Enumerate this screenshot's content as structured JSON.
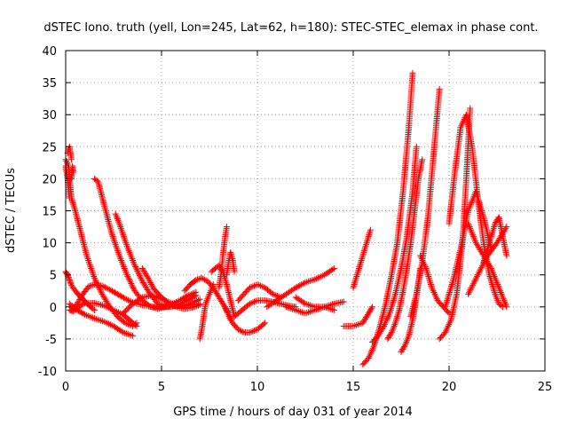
{
  "chart_data": {
    "type": "scatter",
    "title": "dSTEC Iono. truth (yell, Lon=245, Lat=62, h=180): STEC-STEC_elemax in phase cont.",
    "xlabel": "GPS time / hours of day 031 of year 2014",
    "ylabel": "dSTEC  / TECUs",
    "xlim": [
      0,
      25
    ],
    "ylim": [
      -10,
      40
    ],
    "xticks": [
      0,
      5,
      10,
      15,
      20,
      25
    ],
    "yticks": [
      -10,
      -5,
      0,
      5,
      10,
      15,
      20,
      25,
      30,
      35,
      40
    ],
    "grid": true,
    "marker": "+",
    "color": "#ff0000",
    "arcs": [
      {
        "x": [
          0.0,
          0.1,
          0.2,
          0.3,
          0.5,
          0.7,
          0.9,
          1.1,
          1.3,
          1.5
        ],
        "y": [
          5.5,
          5,
          4.2,
          3.4,
          2.5,
          1.8,
          1.2,
          0.6,
          0,
          -0.5
        ]
      },
      {
        "x": [
          0.0,
          0.15,
          0.3,
          0.5,
          0.8,
          1.1,
          1.5,
          1.9,
          2.3,
          2.7,
          3.1,
          3.5,
          3.7
        ],
        "y": [
          23,
          22,
          17,
          15,
          11.5,
          8,
          4.5,
          2,
          0,
          -1.5,
          -2.5,
          -3,
          -2.5
        ]
      },
      {
        "x": [
          0.0,
          0.1,
          0.2
        ],
        "y": [
          22,
          20,
          17
        ]
      },
      {
        "x": [
          0.1,
          0.2,
          0.3
        ],
        "y": [
          24,
          25,
          23
        ]
      },
      {
        "x": [
          0.3,
          0.35,
          0.4
        ],
        "y": [
          20,
          22,
          21
        ]
      },
      {
        "x": [
          0.2,
          0.4,
          0.7,
          1.0,
          1.5,
          2.0,
          2.5,
          3.0,
          3.5,
          3.7
        ],
        "y": [
          -0.5,
          -0.7,
          0,
          0.6,
          0.6,
          0.2,
          -0.5,
          -1.2,
          -2.5,
          -3
        ]
      },
      {
        "x": [
          0.2,
          0.6,
          1.0,
          1.5,
          2.0,
          2.5,
          3.0,
          3.5
        ],
        "y": [
          0.5,
          -0.5,
          -1.2,
          -1.8,
          -2.3,
          -3,
          -4,
          -4.5
        ]
      },
      {
        "x": [
          0.3,
          0.6,
          0.9,
          1.2,
          1.5,
          1.9,
          2.3,
          2.7,
          3.1,
          3.5,
          4.0,
          4.5,
          5.0,
          5.5,
          6.0,
          6.5,
          7.0
        ],
        "y": [
          -0.5,
          0.5,
          2,
          3.2,
          3.5,
          3.3,
          2.7,
          2,
          1.3,
          0.7,
          0.3,
          0,
          0,
          0.1,
          0.2,
          0.3,
          0.5
        ]
      },
      {
        "x": [
          1.5,
          1.7,
          2.0,
          2.4,
          2.8,
          3.2,
          3.6,
          4.0,
          4.4,
          4.8,
          5.2,
          5.6,
          6.0,
          6.4,
          6.8
        ],
        "y": [
          20,
          19.5,
          16,
          11.5,
          8,
          5,
          2.5,
          1,
          0.1,
          -0.3,
          0,
          0.5,
          1.1,
          1.8,
          2.3
        ]
      },
      {
        "x": [
          2.6,
          2.8,
          3.2,
          3.6,
          4.0,
          4.4,
          4.8,
          5.2,
          5.6,
          6.0,
          6.4,
          6.8
        ],
        "y": [
          14.5,
          13,
          9.5,
          6.5,
          4,
          2,
          0.5,
          0,
          0.1,
          0.5,
          1.1,
          1.8
        ]
      },
      {
        "x": [
          4.0,
          4.3,
          4.6,
          5.0,
          5.4,
          5.8,
          6.2,
          6.6,
          7.0
        ],
        "y": [
          6,
          4.5,
          2.8,
          1.5,
          0.5,
          0,
          -0.3,
          -0.1,
          0.3
        ]
      },
      {
        "x": [
          3.0,
          3.5,
          4.0,
          4.5,
          5.0,
          5.5,
          6.0,
          6.5,
          7.0
        ],
        "y": [
          -1,
          0.5,
          1.5,
          1.8,
          1.2,
          0.6,
          0.2,
          0.5,
          1.2
        ]
      },
      {
        "x": [
          6.2,
          6.5,
          6.8,
          7.1,
          7.4,
          7.7,
          8.0,
          8.3,
          8.6
        ],
        "y": [
          2.5,
          3.5,
          4.2,
          4.5,
          4,
          3,
          1.5,
          0,
          -2
        ]
      },
      {
        "x": [
          7.0,
          7.1,
          7.2,
          7.3,
          7.5,
          7.7
        ],
        "y": [
          -5,
          -3.5,
          -1.5,
          0.5,
          2,
          3.5
        ]
      },
      {
        "x": [
          7.6,
          7.8,
          8.0,
          8.2,
          8.4,
          8.6,
          8.8
        ],
        "y": [
          5.5,
          6,
          6.5,
          5.5,
          3.5,
          1,
          -1.5
        ]
      },
      {
        "x": [
          8.0,
          8.1,
          8.2,
          8.3,
          8.4
        ],
        "y": [
          3,
          5,
          8,
          10.5,
          12.5
        ]
      },
      {
        "x": [
          8.3,
          8.5,
          8.7,
          9.0,
          9.3,
          9.6,
          10.0,
          10.4
        ],
        "y": [
          0,
          -1,
          -2.5,
          -3.5,
          -4,
          -4,
          -3.5,
          -2.5
        ]
      },
      {
        "x": [
          8.4,
          8.5,
          8.6,
          8.7,
          8.8
        ],
        "y": [
          5,
          7,
          8.5,
          7.5,
          5.5
        ]
      },
      {
        "x": [
          9.0,
          9.3,
          9.6,
          10.0,
          10.4,
          10.8,
          11.2
        ],
        "y": [
          1,
          2,
          3,
          3.5,
          3,
          2,
          1.5
        ]
      },
      {
        "x": [
          8.8,
          9.2,
          9.6,
          10.0,
          10.4,
          10.8,
          11.2,
          11.6,
          12.0
        ],
        "y": [
          -1.5,
          -0.5,
          0.5,
          1,
          1,
          0.8,
          0.5,
          0.2,
          0
        ]
      },
      {
        "x": [
          10.5,
          11.0,
          11.5,
          12.0,
          12.5,
          13.0,
          13.5,
          14.0
        ],
        "y": [
          0,
          1,
          2,
          3,
          3.8,
          4.3,
          5,
          6
        ]
      },
      {
        "x": [
          11.5,
          12.0,
          12.5,
          13.0,
          13.5,
          14.0
        ],
        "y": [
          0,
          -0.5,
          -1,
          -0.5,
          0,
          -0.5
        ]
      },
      {
        "x": [
          12.0,
          12.5,
          13.0,
          13.5,
          14.0,
          14.5
        ],
        "y": [
          1.5,
          0.5,
          0,
          0,
          0.5,
          0.8
        ]
      },
      {
        "x": [
          14.5,
          15.0,
          15.5,
          15.8,
          16.0
        ],
        "y": [
          -3,
          -3,
          -2.5,
          -1,
          0
        ]
      },
      {
        "x": [
          15.0,
          15.3,
          15.6,
          15.8,
          15.9
        ],
        "y": [
          3,
          6,
          9,
          11,
          12
        ]
      },
      {
        "x": [
          15.5,
          15.8,
          16.1,
          16.4,
          16.7,
          17.0,
          17.3,
          17.6,
          17.9,
          18.1
        ],
        "y": [
          -9,
          -8,
          -6,
          -3,
          0.5,
          5,
          10,
          18,
          28,
          36.5
        ]
      },
      {
        "x": [
          16.0,
          16.3,
          16.6,
          16.9,
          17.2,
          17.5,
          17.8,
          18.1,
          18.3
        ],
        "y": [
          -5.5,
          -4.5,
          -3,
          -1,
          2,
          6,
          11,
          18,
          25
        ]
      },
      {
        "x": [
          16.8,
          17.0,
          17.2,
          17.4,
          17.6,
          17.8,
          18.0,
          18.2,
          18.4,
          18.6
        ],
        "y": [
          -5,
          -4,
          -2.5,
          -0.5,
          2.5,
          6,
          10,
          15,
          20,
          23
        ]
      },
      {
        "x": [
          17.5,
          17.7,
          17.9,
          18.1,
          18.3,
          18.5
        ],
        "y": [
          -7,
          -6,
          -4.5,
          -2,
          1.5,
          6
        ]
      },
      {
        "x": [
          18.0,
          18.3,
          18.6,
          18.9,
          19.2,
          19.5
        ],
        "y": [
          -1.5,
          2,
          7,
          14,
          24,
          34
        ]
      },
      {
        "x": [
          18.5,
          18.8,
          19.1,
          19.4,
          19.7,
          20.0
        ],
        "y": [
          8,
          6,
          3,
          1,
          0,
          -1
        ]
      },
      {
        "x": [
          19.5,
          19.8,
          20.1,
          20.4,
          20.7,
          20.9,
          21.1
        ],
        "y": [
          -5,
          -4,
          -2,
          2,
          10,
          20,
          31
        ]
      },
      {
        "x": [
          20.0,
          20.3,
          20.6,
          20.9,
          21.2,
          21.5,
          21.8,
          22.1,
          22.4,
          22.6,
          22.8
        ],
        "y": [
          13,
          21,
          28,
          30,
          25,
          17,
          10,
          5,
          2,
          0.5,
          0
        ]
      },
      {
        "x": [
          19.8,
          20.2,
          20.6,
          21.0,
          21.4,
          21.8,
          22.2
        ],
        "y": [
          0,
          4,
          9,
          15,
          18,
          14,
          9
        ]
      },
      {
        "x": [
          21.0,
          21.4,
          21.8,
          22.2,
          22.6,
          23.0
        ],
        "y": [
          13,
          10,
          8,
          6,
          3,
          0
        ]
      },
      {
        "x": [
          21.8,
          22.0,
          22.2,
          22.4,
          22.6,
          22.8,
          23.0
        ],
        "y": [
          7,
          9,
          11,
          13,
          14,
          11,
          8
        ]
      },
      {
        "x": [
          21.0,
          21.5,
          22.0,
          22.5,
          23.0
        ],
        "y": [
          2,
          5,
          8,
          10,
          12.5
        ]
      }
    ]
  }
}
